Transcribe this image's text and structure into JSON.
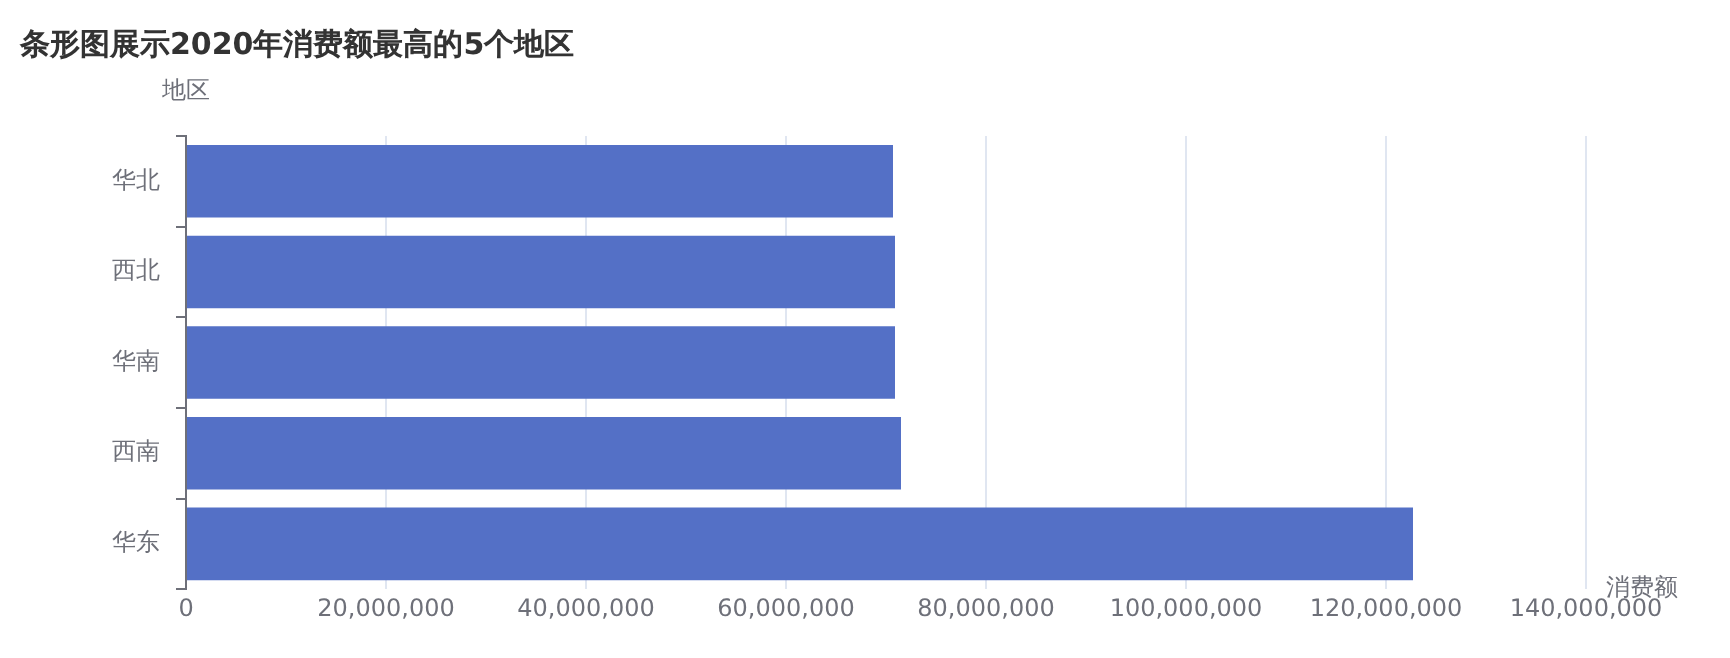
{
  "chart_data": {
    "type": "bar",
    "orientation": "horizontal",
    "title": "条形图展示2020年消费额最高的5个地区",
    "xlabel": "消费额",
    "ylabel": "地区",
    "categories": [
      "华北",
      "西北",
      "华南",
      "西南",
      "华东"
    ],
    "values": [
      70700000.0,
      70900000.0,
      70900000.0,
      71500000.0,
      122700000.0
    ],
    "color": "#5470c6",
    "xlim": [
      0,
      140000000
    ],
    "xticks": [
      0,
      {
        "value": 20000000,
        "label": "20,000,000"
      },
      {
        "value": 40000000,
        "label": "40,000,000"
      },
      {
        "value": 60000000,
        "label": "60,000,000"
      },
      {
        "value": 80000000,
        "label": "80,000,000"
      },
      {
        "value": 100000000,
        "label": "100,000,000"
      },
      {
        "value": 120000000,
        "label": "120,000,000"
      },
      {
        "value": 140000000,
        "label": "140,000,000"
      }
    ],
    "grid": "x",
    "legend": false
  }
}
